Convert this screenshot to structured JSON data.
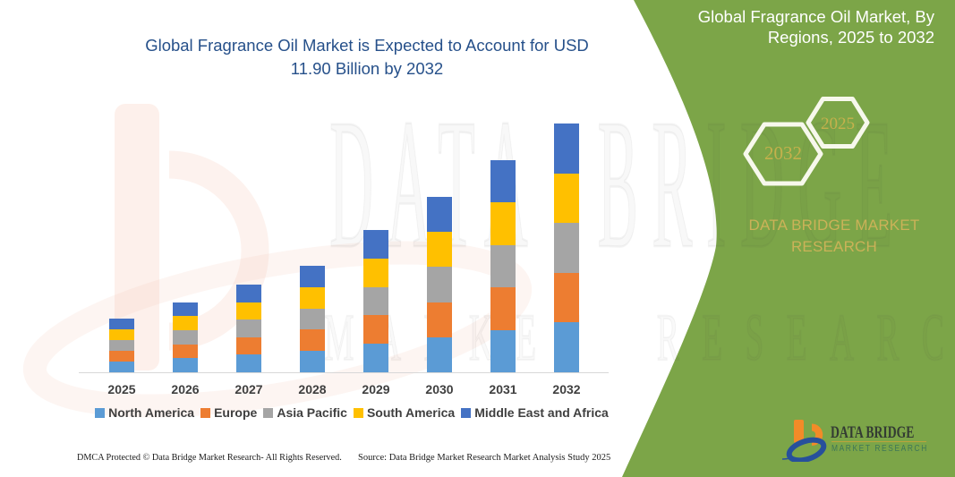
{
  "title": {
    "text": "Global Fragrance Oil Market is Expected to Account for USD 11.90 Billion by 2032",
    "lines": [
      "Global Fragrance Oil Market is Expected to Account for USD",
      "11.90 Billion by 2032"
    ]
  },
  "right_panel": {
    "heading_lines": [
      "Global Fragrance Oil Market, By",
      "Regions, 2025 to 2032"
    ],
    "hexagon_large_year": "2032",
    "hexagon_small_year": "2025",
    "brand_lines": [
      "DATA BRIDGE MARKET",
      "RESEARCH"
    ]
  },
  "watermark": {
    "line1": "DATA BRIDGE",
    "line2": "MARKET RESEARCH"
  },
  "logo": {
    "name": "DATA BRIDGE",
    "subtext": "MARKET RESEARCH"
  },
  "footer": {
    "left": "DMCA Protected © Data Bridge Market Research-  All Rights Reserved.",
    "right": "Source: Data Bridge Market Research  Market Analysis Study 2025"
  },
  "colors": {
    "green_panel": "#7CA548",
    "title_blue": "#26508A",
    "gold_text": "#C9AC45",
    "hexagon_stroke": "#F7F8EC",
    "axis_line": "#D8D8D8",
    "axis_label": "#3F3F3F"
  },
  "chart_data": {
    "type": "bar",
    "stacked": true,
    "title": "Global Fragrance Oil Market is Expected to Account for USD 11.90 Billion by 2032",
    "xlabel": "",
    "ylabel": "",
    "unit": "USD Billion",
    "axis_visible": "x-only",
    "grid": false,
    "legend_position": "bottom",
    "categories": [
      "2025",
      "2026",
      "2027",
      "2028",
      "2029",
      "2030",
      "2031",
      "2032"
    ],
    "totals": [
      2.55,
      3.35,
      4.2,
      5.1,
      6.8,
      8.4,
      10.15,
      11.9
    ],
    "ylim": [
      0,
      12.2
    ],
    "series": [
      {
        "name": "North America",
        "color": "#5B9BD5",
        "values": [
          0.51,
          0.67,
          0.84,
          1.02,
          1.36,
          1.68,
          2.03,
          2.38
        ]
      },
      {
        "name": "Europe",
        "color": "#ED7D31",
        "values": [
          0.51,
          0.67,
          0.84,
          1.02,
          1.36,
          1.68,
          2.03,
          2.38
        ]
      },
      {
        "name": "Asia Pacific",
        "color": "#A5A5A5",
        "values": [
          0.51,
          0.67,
          0.84,
          1.02,
          1.36,
          1.68,
          2.03,
          2.38
        ]
      },
      {
        "name": "South America",
        "color": "#FFC000",
        "values": [
          0.51,
          0.67,
          0.84,
          1.02,
          1.36,
          1.68,
          2.03,
          2.38
        ]
      },
      {
        "name": "Middle East and Africa",
        "color": "#4472C4",
        "values": [
          0.51,
          0.67,
          0.84,
          1.02,
          1.36,
          1.68,
          2.03,
          2.38
        ]
      }
    ]
  }
}
